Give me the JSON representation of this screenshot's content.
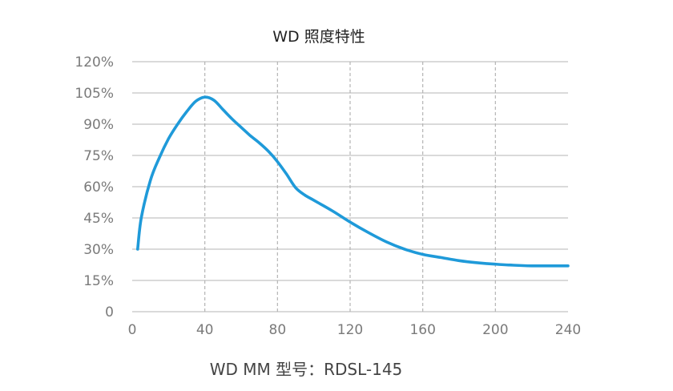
{
  "chart_data": {
    "type": "line",
    "title": "WD 照度特性",
    "subtitle": "WD MM 型号：RDSL-145",
    "xlabel": "",
    "ylabel": "",
    "xlim": [
      0,
      240
    ],
    "ylim": [
      0,
      120
    ],
    "x_ticks": [
      "0",
      "40",
      "80",
      "120",
      "160",
      "200",
      "240"
    ],
    "y_ticks": [
      "0",
      "15%",
      "30%",
      "45%",
      "60%",
      "75%",
      "90%",
      "105%",
      "120%"
    ],
    "grid": {
      "horizontal": "solid",
      "vertical": "dashed"
    },
    "legend": "none",
    "line_color": "#1f9ad9",
    "series": [
      {
        "x": [
          3,
          5,
          10,
          15,
          20,
          25,
          30,
          35,
          40,
          45,
          50,
          55,
          60,
          65,
          70,
          75,
          80,
          85,
          90,
          95,
          100,
          110,
          120,
          130,
          140,
          150,
          160,
          170,
          180,
          190,
          200,
          210,
          220,
          230,
          240
        ],
        "values": [
          30,
          45,
          63,
          74,
          83,
          90,
          96,
          101,
          103,
          101.5,
          97,
          92.5,
          88.5,
          84.5,
          81,
          77,
          72,
          66,
          59.5,
          56,
          53.5,
          48.5,
          43,
          38,
          33.5,
          30,
          27.5,
          26,
          24.5,
          23.5,
          22.8,
          22.3,
          22,
          22,
          22
        ]
      }
    ]
  }
}
